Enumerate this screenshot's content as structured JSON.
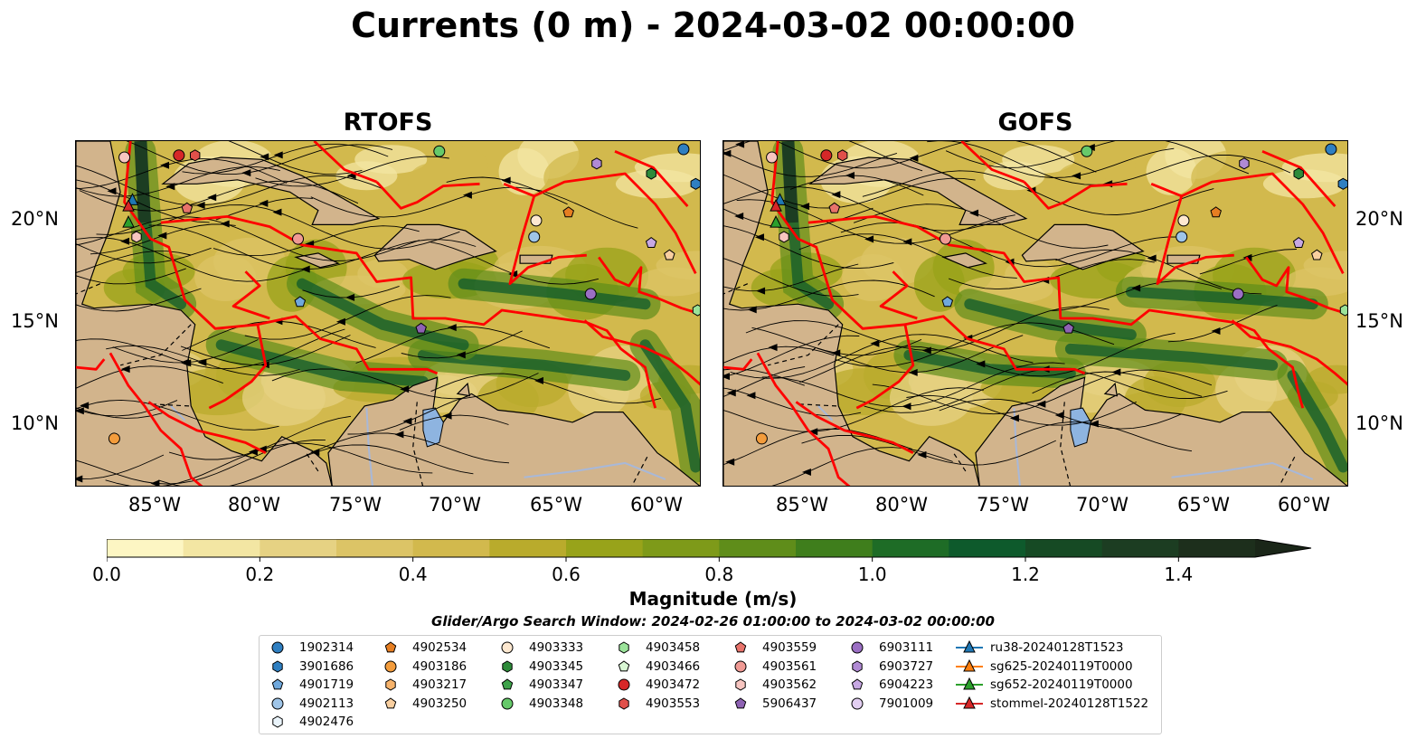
{
  "title": "Currents (0 m) - 2024-03-02 00:00:00",
  "panels": [
    {
      "name": "RTOFS"
    },
    {
      "name": "GOFS"
    }
  ],
  "lat_labels": [
    "20°N",
    "15°N",
    "10°N"
  ],
  "lon_labels": [
    "85°W",
    "80°W",
    "75°W",
    "70°W",
    "65°W",
    "60°W"
  ],
  "colorbar": {
    "label": "Magnitude (m/s)",
    "min": 0.0,
    "max": 1.5,
    "step": 0.1,
    "extend": "max",
    "tick_labels": [
      "0.0",
      "0.2",
      "0.4",
      "0.6",
      "0.8",
      "1.0",
      "1.2",
      "1.4"
    ],
    "colors": [
      "#fdf6c3",
      "#f3e6a3",
      "#e6d283",
      "#dcc466",
      "#d2b94d",
      "#b9ab2c",
      "#98a31a",
      "#7e9a19",
      "#5f8d1a",
      "#3f7e1c",
      "#1e6c26",
      "#0e5a2c",
      "#164a24",
      "#1c3d22",
      "#1d2f1c",
      "#1a2618"
    ]
  },
  "subtitle": "Glider/Argo Search Window: 2024-02-26 01:00:00 to 2024-03-02 00:00:00",
  "chart_data": {
    "type": "heatmap",
    "title": "Currents (0 m) - 2024-03-02 00:00:00",
    "variable": "surface current magnitude with streamlines",
    "units": "m/s",
    "panels": [
      "RTOFS",
      "GOFS"
    ],
    "extent": {
      "lon": [
        -89.2,
        -58.2
      ],
      "lat": [
        7,
        24
      ]
    },
    "lon_ticks": [
      -85,
      -80,
      -75,
      -70,
      -65,
      -60
    ],
    "lat_ticks": [
      20,
      15,
      10
    ],
    "colorbar_range": [
      0.0,
      1.5
    ]
  },
  "legend": [
    {
      "label": "1902314",
      "marker": "circle",
      "color": "#2f7fc1"
    },
    {
      "label": "3901686",
      "marker": "hexagon",
      "color": "#2f7fc1"
    },
    {
      "label": "4901719",
      "marker": "pentagon",
      "color": "#6fa8dc"
    },
    {
      "label": "4902113",
      "marker": "circle",
      "color": "#9fc5e8"
    },
    {
      "label": "4902476",
      "marker": "hexagon",
      "color": "#eaf4fb"
    },
    {
      "label": "4902534",
      "marker": "pentagon",
      "color": "#e67e22"
    },
    {
      "label": "4903186",
      "marker": "circle",
      "color": "#f39c3c"
    },
    {
      "label": "4903217",
      "marker": "hexagon",
      "color": "#f7b36b"
    },
    {
      "label": "4903250",
      "marker": "pentagon",
      "color": "#f9cfa0"
    },
    {
      "label": "4903333",
      "marker": "circle",
      "color": "#fde8d0"
    },
    {
      "label": "4903345",
      "marker": "hexagon",
      "color": "#2e8b3a"
    },
    {
      "label": "4903347",
      "marker": "pentagon",
      "color": "#3ea34a"
    },
    {
      "label": "4903348",
      "marker": "circle",
      "color": "#66c96a"
    },
    {
      "label": "4903458",
      "marker": "hexagon",
      "color": "#9be39a"
    },
    {
      "label": "4903466",
      "marker": "pentagon",
      "color": "#d9f7d4"
    },
    {
      "label": "4903472",
      "marker": "circle",
      "color": "#d62728"
    },
    {
      "label": "4903553",
      "marker": "hexagon",
      "color": "#e0504a"
    },
    {
      "label": "4903559",
      "marker": "pentagon",
      "color": "#e8736b"
    },
    {
      "label": "4903561",
      "marker": "circle",
      "color": "#f09a94"
    },
    {
      "label": "4903562",
      "marker": "hexagon",
      "color": "#f7c5c0"
    },
    {
      "label": "5906437",
      "marker": "pentagon",
      "color": "#8e62b3"
    },
    {
      "label": "6903111",
      "marker": "circle",
      "color": "#9b6fc4"
    },
    {
      "label": "6903727",
      "marker": "hexagon",
      "color": "#b08ad4"
    },
    {
      "label": "6904223",
      "marker": "pentagon",
      "color": "#c7a8e3"
    },
    {
      "label": "7901009",
      "marker": "circle",
      "color": "#e3cff2"
    },
    {
      "label": "ru38-20240128T1523",
      "marker": "triangle-line",
      "color": "#1f77b4"
    },
    {
      "label": "sg625-20240119T0000",
      "marker": "triangle-line",
      "color": "#ff7f0e"
    },
    {
      "label": "sg652-20240119T0000",
      "marker": "triangle-line",
      "color": "#2ca02c"
    },
    {
      "label": "stommel-20240128T1522",
      "marker": "triangle-line",
      "color": "#d62728"
    }
  ],
  "colors": {
    "land": "#d2b48c",
    "eez": "#ff0000",
    "lake": "#8eb4e0",
    "river": "#a8b8d8"
  }
}
